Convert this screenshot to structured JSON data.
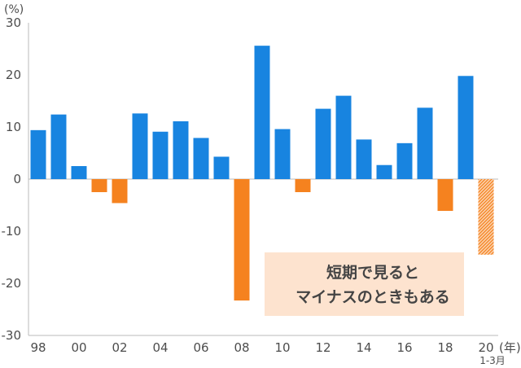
{
  "chart_data": {
    "type": "bar",
    "y_unit_label": "(%)",
    "x_unit_label": "(年)",
    "x_sub_label": "1-3月",
    "ylim": [
      -30,
      30
    ],
    "y_ticks": [
      30,
      20,
      10,
      0,
      -10,
      -20,
      -30
    ],
    "grid": false,
    "categories": [
      "1998",
      "1999",
      "2000",
      "2001",
      "2002",
      "2003",
      "2004",
      "2005",
      "2006",
      "2007",
      "2008",
      "2009",
      "2010",
      "2011",
      "2012",
      "2013",
      "2014",
      "2015",
      "2016",
      "2017",
      "2018",
      "2019",
      "2020"
    ],
    "x_tick_labels": [
      "98",
      "",
      "00",
      "",
      "02",
      "",
      "04",
      "",
      "06",
      "",
      "08",
      "",
      "10",
      "",
      "12",
      "",
      "14",
      "",
      "16",
      "",
      "18",
      "",
      "20"
    ],
    "values": [
      9.4,
      12.4,
      2.5,
      -2.5,
      -4.6,
      12.6,
      9.1,
      11.1,
      7.9,
      4.3,
      -23.3,
      25.6,
      9.6,
      -2.5,
      13.5,
      16.0,
      7.6,
      2.7,
      6.9,
      13.7,
      -6.1,
      19.8,
      -14.5
    ],
    "colors": {
      "positive": "#1884e0",
      "negative": "#f5821f",
      "partial": "#f5821f"
    },
    "partial_period_last": true,
    "annotation": [
      "短期で見ると",
      "マイナスのときもある"
    ],
    "annotation_bg": "#fde3cf"
  }
}
